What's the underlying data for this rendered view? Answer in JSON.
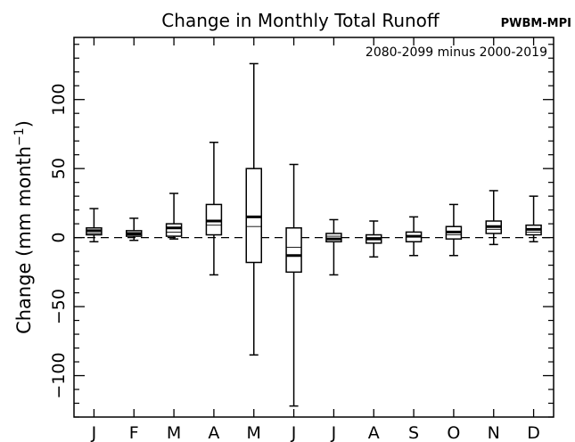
{
  "chart_data": {
    "type": "box",
    "title": "Change in Monthly Total Runoff",
    "source_tag": "PWBM-MPI",
    "annotation": "2080-2099 minus 2000-2019",
    "ylabel_main": "Change (mm month",
    "ylabel_exp": "−1",
    "ylabel_close": ")",
    "ylim": [
      -130,
      145
    ],
    "yticks_major": [
      -100,
      -50,
      0,
      50,
      100
    ],
    "ytick_labels": [
      "−100",
      "−50",
      "0",
      "50",
      "100"
    ],
    "ytick_minor_step": 10,
    "reference_line": {
      "y": 0,
      "style": "dashed"
    },
    "categories": [
      "J",
      "F",
      "M",
      "A",
      "M",
      "J",
      "J",
      "A",
      "S",
      "O",
      "N",
      "D"
    ],
    "series": [
      {
        "boxes": [
          {
            "whisker_low": -3,
            "q1": 2,
            "median": 5,
            "mean": 3,
            "q3": 7,
            "whisker_high": 21
          },
          {
            "whisker_low": -2,
            "q1": 1,
            "median": 3,
            "mean": 2,
            "q3": 5,
            "whisker_high": 14
          },
          {
            "whisker_low": -1,
            "q1": 1,
            "median": 7,
            "mean": 4,
            "q3": 10,
            "whisker_high": 32
          },
          {
            "whisker_low": -27,
            "q1": 2,
            "median": 12,
            "mean": 9,
            "q3": 24,
            "whisker_high": 69
          },
          {
            "whisker_low": -85,
            "q1": -18,
            "median": 15,
            "mean": 8,
            "q3": 50,
            "whisker_high": 126
          },
          {
            "whisker_low": -122,
            "q1": -25,
            "median": -13,
            "mean": -7,
            "q3": 7,
            "whisker_high": 53
          },
          {
            "whisker_low": -27,
            "q1": -3,
            "median": -1,
            "mean": 1,
            "q3": 3,
            "whisker_high": 13
          },
          {
            "whisker_low": -14,
            "q1": -4,
            "median": -1,
            "mean": 0,
            "q3": 2,
            "whisker_high": 12
          },
          {
            "whisker_low": -13,
            "q1": -3,
            "median": 1,
            "mean": 1,
            "q3": 4,
            "whisker_high": 15
          },
          {
            "whisker_low": -13,
            "q1": -1,
            "median": 4,
            "mean": 2,
            "q3": 8,
            "whisker_high": 24
          },
          {
            "whisker_low": -5,
            "q1": 3,
            "median": 8,
            "mean": 6,
            "q3": 12,
            "whisker_high": 34
          },
          {
            "whisker_low": -3,
            "q1": 2,
            "median": 6,
            "mean": 4,
            "q3": 9,
            "whisker_high": 30
          }
        ]
      }
    ],
    "grid": false,
    "legend": "none"
  }
}
